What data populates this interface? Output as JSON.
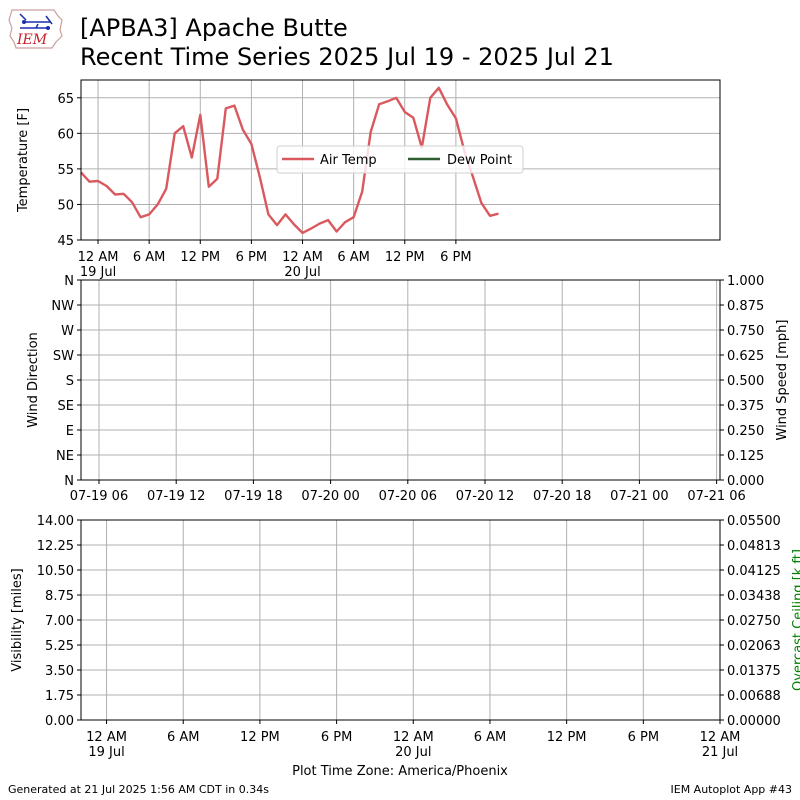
{
  "header": {
    "title_line1": "[APBA3] Apache Butte",
    "title_line2": "Recent Time Series 2025 Jul 19 - 2025 Jul 21",
    "logo_text": "IEM"
  },
  "footer": {
    "generated": "Generated at 21 Jul 2025 1:56 AM CDT in 0.34s",
    "app": "IEM Autoplot App #43",
    "timezone_label": "Plot Time Zone: America/Phoenix"
  },
  "colors": {
    "air_temp": "#d9595f",
    "dew_point": "#2e5e30",
    "grid": "#b0b0b0",
    "ceiling_label": "#008000"
  },
  "chart_data": [
    {
      "type": "line",
      "panel": "temperature",
      "ylabel": "Temperature [F]",
      "ylim": [
        45,
        67.5
      ],
      "yticks": [
        "45",
        "50",
        "55",
        "60",
        "65"
      ],
      "xlim": [
        -2,
        73
      ],
      "xticks": [
        {
          "h": 0,
          "label": "12 AM",
          "sub": "19 Jul"
        },
        {
          "h": 6,
          "label": "6 AM",
          "sub": ""
        },
        {
          "h": 12,
          "label": "12 PM",
          "sub": ""
        },
        {
          "h": 18,
          "label": "6 PM",
          "sub": ""
        },
        {
          "h": 24,
          "label": "12 AM",
          "sub": "20 Jul"
        },
        {
          "h": 30,
          "label": "6 AM",
          "sub": ""
        },
        {
          "h": 36,
          "label": "12 PM",
          "sub": ""
        },
        {
          "h": 42,
          "label": "6 PM",
          "sub": ""
        }
      ],
      "grid": true,
      "legend_placement": "center",
      "series": [
        {
          "name": "Air Temp",
          "x": [
            -2,
            -1,
            0,
            1,
            2,
            3,
            4,
            5,
            6,
            7,
            8,
            9,
            10,
            11,
            12,
            13,
            14,
            15,
            16,
            17,
            18,
            19,
            20,
            21,
            22,
            23,
            24,
            25,
            26,
            27,
            28,
            29,
            30,
            31,
            32,
            33,
            34,
            35,
            36,
            37,
            38,
            39,
            40,
            41,
            42,
            43,
            44,
            45,
            46,
            47
          ],
          "y": [
            54.5,
            53.2,
            53.3,
            52.6,
            51.4,
            51.5,
            50.3,
            48.2,
            48.6,
            50.0,
            52.2,
            60.0,
            61.0,
            56.6,
            62.6,
            52.5,
            53.6,
            63.5,
            63.9,
            60.5,
            58.5,
            53.8,
            48.6,
            47.1,
            48.6,
            47.2,
            46.0,
            46.6,
            47.3,
            47.8,
            46.2,
            47.5,
            48.2,
            51.8,
            60.2,
            64.1,
            64.5,
            65.0,
            63.0,
            62.2,
            58.0,
            65.0,
            66.4,
            64.0,
            62.1,
            57.5,
            53.9,
            50.2,
            48.4,
            48.7
          ]
        },
        {
          "name": "Dew Point",
          "x": [],
          "y": []
        }
      ]
    },
    {
      "type": "line",
      "panel": "wind",
      "ylabel": "Wind Direction",
      "ylabel_right": "Wind Speed [mph]",
      "yticks": [
        "N",
        "NE",
        "E",
        "SE",
        "S",
        "SW",
        "W",
        "NW",
        "N"
      ],
      "yticks_right": [
        "0.000",
        "0.125",
        "0.250",
        "0.375",
        "0.500",
        "0.625",
        "0.750",
        "0.875",
        "1.000"
      ],
      "ylim_right": [
        0,
        1
      ],
      "xticks": [
        "07-19 06",
        "07-19 12",
        "07-19 18",
        "07-20 00",
        "07-20 06",
        "07-20 12",
        "07-20 18",
        "07-21 00",
        "07-21 06"
      ],
      "grid": true,
      "series": []
    },
    {
      "type": "line",
      "panel": "visibility",
      "ylabel": "Visibility [miles]",
      "ylabel_right": "Overcast Ceiling [k ft]",
      "ylim": [
        0,
        14
      ],
      "yticks": [
        "0.00",
        "1.75",
        "3.50",
        "5.25",
        "7.00",
        "8.75",
        "10.50",
        "12.25",
        "14.00"
      ],
      "yticks_right": [
        "0.00000",
        "0.00688",
        "0.01375",
        "0.02063",
        "0.02750",
        "0.03438",
        "0.04125",
        "0.04813",
        "0.05500"
      ],
      "ylim_right": [
        0,
        0.055
      ],
      "xlim": [
        -2,
        48
      ],
      "xticks": [
        {
          "h": 0,
          "label": "12 AM",
          "sub": "19 Jul"
        },
        {
          "h": 6,
          "label": "6 AM",
          "sub": ""
        },
        {
          "h": 12,
          "label": "12 PM",
          "sub": ""
        },
        {
          "h": 18,
          "label": "6 PM",
          "sub": ""
        },
        {
          "h": 24,
          "label": "12 AM",
          "sub": "20 Jul"
        },
        {
          "h": 30,
          "label": "6 AM",
          "sub": ""
        },
        {
          "h": 36,
          "label": "12 PM",
          "sub": ""
        },
        {
          "h": 42,
          "label": "6 PM",
          "sub": ""
        },
        {
          "h": 48,
          "label": "12 AM",
          "sub": "21 Jul"
        }
      ],
      "grid": true,
      "series": []
    }
  ]
}
